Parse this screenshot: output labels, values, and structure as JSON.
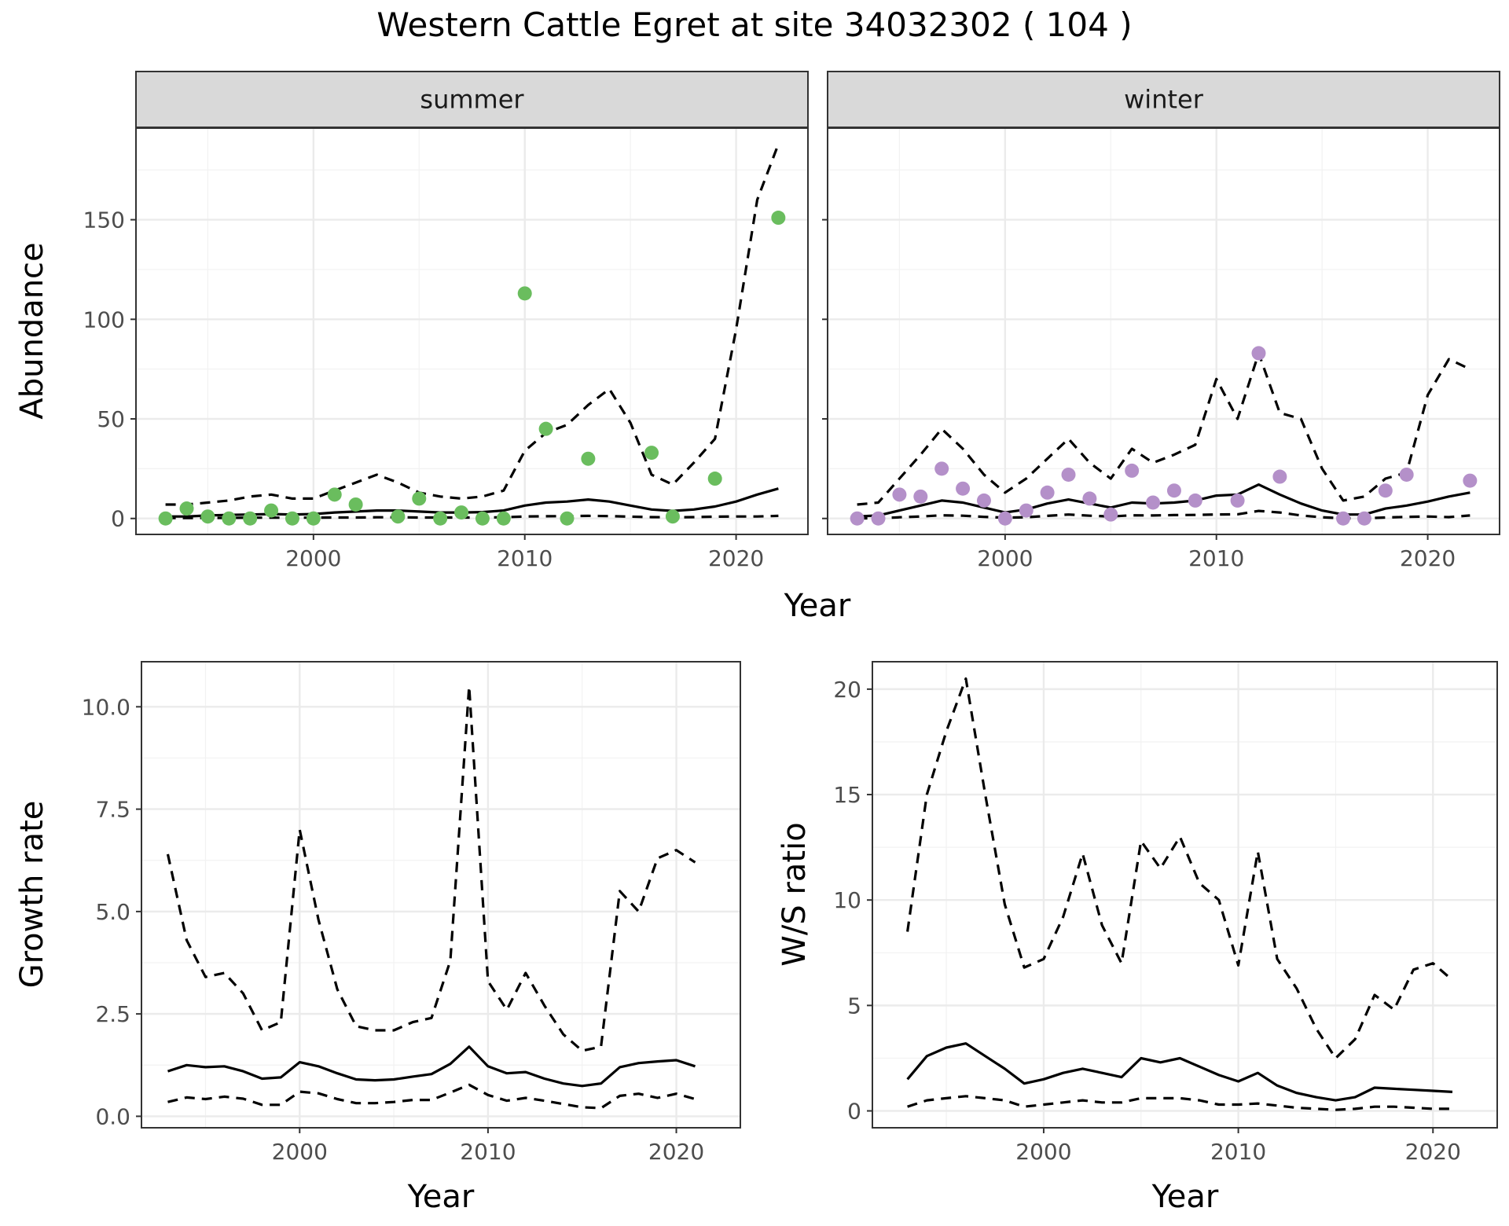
{
  "title": "Western Cattle Egret at site 34032302 ( 104 )",
  "chart_data": [
    {
      "id": "abundance-summer",
      "type": "line",
      "facet": "summer",
      "xlabel": "",
      "ylabel": "Abundance",
      "xlim": [
        1991.6,
        2023.4
      ],
      "ylim": [
        -8,
        196
      ],
      "xticks": [
        2000,
        2010,
        2020
      ],
      "yticks": [
        0,
        50,
        100,
        150
      ],
      "x": [
        1993,
        1994,
        1995,
        1996,
        1997,
        1998,
        1999,
        2000,
        2001,
        2002,
        2003,
        2004,
        2005,
        2006,
        2007,
        2008,
        2009,
        2010,
        2011,
        2012,
        2013,
        2014,
        2015,
        2016,
        2017,
        2018,
        2019,
        2020,
        2021,
        2022
      ],
      "series": [
        {
          "role": "upper",
          "style": "dashed",
          "values": [
            7,
            7,
            8,
            9,
            11,
            12,
            10,
            10,
            14,
            18,
            22,
            18,
            13,
            11,
            10,
            11,
            14,
            34,
            43,
            47,
            57,
            65,
            48,
            22,
            17,
            28,
            40,
            95,
            160,
            188
          ]
        },
        {
          "role": "mean",
          "style": "solid",
          "values": [
            1,
            1,
            1.5,
            1.8,
            2,
            2.2,
            2,
            2.2,
            3,
            3.5,
            4,
            4,
            3.5,
            3,
            3,
            3.2,
            4,
            6.5,
            8,
            8.5,
            9.5,
            8.5,
            6.5,
            4.5,
            3.8,
            4.5,
            6,
            8.5,
            12,
            15
          ]
        },
        {
          "role": "lower",
          "style": "dashed",
          "values": [
            0.2,
            0.2,
            0.3,
            0.3,
            0.4,
            0.4,
            0.4,
            0.4,
            0.5,
            0.5,
            0.6,
            0.6,
            0.5,
            0.5,
            0.5,
            0.5,
            0.6,
            1,
            1.1,
            1.2,
            1.3,
            1.2,
            0.9,
            0.7,
            0.6,
            0.7,
            0.9,
            1,
            1,
            1.3
          ]
        }
      ],
      "points": {
        "color": "#6abd5e",
        "x": [
          1993,
          1994,
          1995,
          1996,
          1997,
          1998,
          1999,
          2000,
          2001,
          2002,
          2004,
          2005,
          2006,
          2007,
          2008,
          2009,
          2010,
          2011,
          2012,
          2013,
          2016,
          2017,
          2019,
          2022
        ],
        "y": [
          0,
          5,
          1,
          0,
          0,
          4,
          0,
          0,
          12,
          7,
          1,
          10,
          0,
          3,
          0,
          0,
          113,
          45,
          0,
          30,
          33,
          1,
          20,
          151
        ]
      }
    },
    {
      "id": "abundance-winter",
      "type": "line",
      "facet": "winter",
      "xlabel": "",
      "ylabel": "",
      "xlim": [
        1991.6,
        2023.4
      ],
      "ylim": [
        -8,
        196
      ],
      "xticks": [
        2000,
        2010,
        2020
      ],
      "yticks": [
        0,
        50,
        100,
        150
      ],
      "x": [
        1993,
        1994,
        1995,
        1996,
        1997,
        1998,
        1999,
        2000,
        2001,
        2002,
        2003,
        2004,
        2005,
        2006,
        2007,
        2008,
        2009,
        2010,
        2011,
        2012,
        2013,
        2014,
        2015,
        2016,
        2017,
        2018,
        2019,
        2020,
        2021,
        2022
      ],
      "series": [
        {
          "role": "upper",
          "style": "dashed",
          "values": [
            7,
            8,
            20,
            32,
            45,
            35,
            22,
            13,
            20,
            30,
            40,
            28,
            20,
            35,
            28,
            32,
            37,
            70,
            50,
            83,
            53,
            50,
            25,
            9,
            11,
            20,
            23,
            62,
            80,
            75
          ]
        },
        {
          "role": "mean",
          "style": "solid",
          "values": [
            1,
            1.5,
            4,
            6.5,
            9,
            8,
            5.5,
            3,
            4.5,
            7.5,
            9.5,
            7.5,
            5.5,
            8,
            7.5,
            8,
            9,
            11.5,
            12,
            17,
            12,
            7.5,
            4,
            2,
            2,
            5,
            6.5,
            8.5,
            11,
            13
          ]
        },
        {
          "role": "lower",
          "style": "dashed",
          "values": [
            0.1,
            0.1,
            0.6,
            1,
            1.6,
            1.4,
            0.8,
            0.4,
            0.6,
            1.3,
            2,
            1.4,
            1,
            1.6,
            1.5,
            1.7,
            1.8,
            2,
            2.1,
            3.8,
            3,
            1.5,
            0.6,
            0.1,
            0.1,
            0.5,
            0.8,
            1,
            0.7,
            1.5
          ]
        }
      ],
      "points": {
        "color": "#b490c9",
        "x": [
          1993,
          1994,
          1995,
          1996,
          1997,
          1998,
          1999,
          2000,
          2001,
          2002,
          2003,
          2004,
          2005,
          2006,
          2007,
          2008,
          2009,
          2011,
          2012,
          2013,
          2016,
          2017,
          2018,
          2019,
          2022
        ],
        "y": [
          0,
          0,
          12,
          11,
          25,
          15,
          9,
          0,
          4,
          13,
          22,
          10,
          2,
          24,
          8,
          14,
          9,
          9,
          83,
          21,
          0,
          0,
          14,
          22,
          19
        ]
      }
    },
    {
      "id": "growth-rate",
      "type": "line",
      "xlabel": "Year",
      "ylabel": "Growth rate",
      "xlim": [
        1991.6,
        2023.4
      ],
      "ylim": [
        -0.28,
        11.1
      ],
      "xticks": [
        2000,
        2010,
        2020
      ],
      "yticks": [
        0.0,
        2.5,
        5.0,
        7.5,
        10.0
      ],
      "ytick_labels": [
        "0.0",
        "2.5",
        "5.0",
        "7.5",
        "10.0"
      ],
      "x": [
        1993,
        1994,
        1995,
        1996,
        1997,
        1998,
        1999,
        2000,
        2001,
        2002,
        2003,
        2004,
        2005,
        2006,
        2007,
        2008,
        2009,
        2010,
        2011,
        2012,
        2013,
        2014,
        2015,
        2016,
        2017,
        2018,
        2019,
        2020,
        2021
      ],
      "series": [
        {
          "role": "upper",
          "style": "dashed",
          "values": [
            6.4,
            4.3,
            3.4,
            3.5,
            3,
            2.1,
            2.3,
            7,
            4.8,
            3.1,
            2.2,
            2.1,
            2.1,
            2.3,
            2.4,
            3.8,
            10.5,
            3.3,
            2.6,
            3.5,
            2.7,
            2,
            1.6,
            1.7,
            5.5,
            5,
            6.3,
            6.5,
            6.2
          ]
        },
        {
          "role": "mean",
          "style": "solid",
          "values": [
            1.1,
            1.25,
            1.2,
            1.22,
            1.1,
            0.92,
            0.95,
            1.32,
            1.22,
            1.05,
            0.9,
            0.88,
            0.9,
            0.97,
            1.03,
            1.28,
            1.7,
            1.22,
            1.05,
            1.08,
            0.92,
            0.8,
            0.74,
            0.8,
            1.2,
            1.3,
            1.34,
            1.37,
            1.22
          ]
        },
        {
          "role": "lower",
          "style": "dashed",
          "values": [
            0.35,
            0.46,
            0.42,
            0.48,
            0.43,
            0.28,
            0.28,
            0.6,
            0.56,
            0.42,
            0.32,
            0.32,
            0.35,
            0.4,
            0.4,
            0.58,
            0.77,
            0.52,
            0.38,
            0.45,
            0.38,
            0.3,
            0.22,
            0.2,
            0.5,
            0.55,
            0.45,
            0.55,
            0.42
          ]
        }
      ]
    },
    {
      "id": "ws-ratio",
      "type": "line",
      "xlabel": "Year",
      "ylabel": "W/S ratio",
      "xlim": [
        1991.2,
        2023.3
      ],
      "ylim": [
        -0.8,
        21.3
      ],
      "xticks": [
        2000,
        2010,
        2020
      ],
      "yticks": [
        0,
        5,
        10,
        15,
        20
      ],
      "x": [
        1993,
        1994,
        1995,
        1996,
        1997,
        1998,
        1999,
        2000,
        2001,
        2002,
        2003,
        2004,
        2005,
        2006,
        2007,
        2008,
        2009,
        2010,
        2011,
        2012,
        2013,
        2014,
        2015,
        2016,
        2017,
        2018,
        2019,
        2020,
        2021
      ],
      "series": [
        {
          "role": "upper",
          "style": "dashed",
          "values": [
            8.5,
            15,
            18,
            20.5,
            15,
            9.8,
            6.8,
            7.2,
            9.2,
            12.2,
            8.8,
            7,
            12.8,
            11.5,
            13,
            10.8,
            10,
            6.9,
            12.3,
            7.2,
            5.8,
            3.9,
            2.5,
            3.4,
            5.5,
            4.8,
            6.7,
            7,
            6.2
          ]
        },
        {
          "role": "mean",
          "style": "solid",
          "values": [
            1.5,
            2.6,
            3,
            3.2,
            2.6,
            2,
            1.3,
            1.5,
            1.8,
            2,
            1.8,
            1.6,
            2.5,
            2.3,
            2.5,
            2.1,
            1.7,
            1.4,
            1.8,
            1.2,
            0.85,
            0.65,
            0.5,
            0.65,
            1.1,
            1.05,
            1,
            0.95,
            0.9
          ]
        },
        {
          "role": "lower",
          "style": "dashed",
          "values": [
            0.2,
            0.5,
            0.6,
            0.7,
            0.6,
            0.5,
            0.2,
            0.3,
            0.4,
            0.5,
            0.4,
            0.4,
            0.6,
            0.6,
            0.6,
            0.5,
            0.3,
            0.3,
            0.35,
            0.25,
            0.15,
            0.1,
            0.05,
            0.1,
            0.2,
            0.2,
            0.15,
            0.1,
            0.1
          ]
        }
      ]
    }
  ]
}
